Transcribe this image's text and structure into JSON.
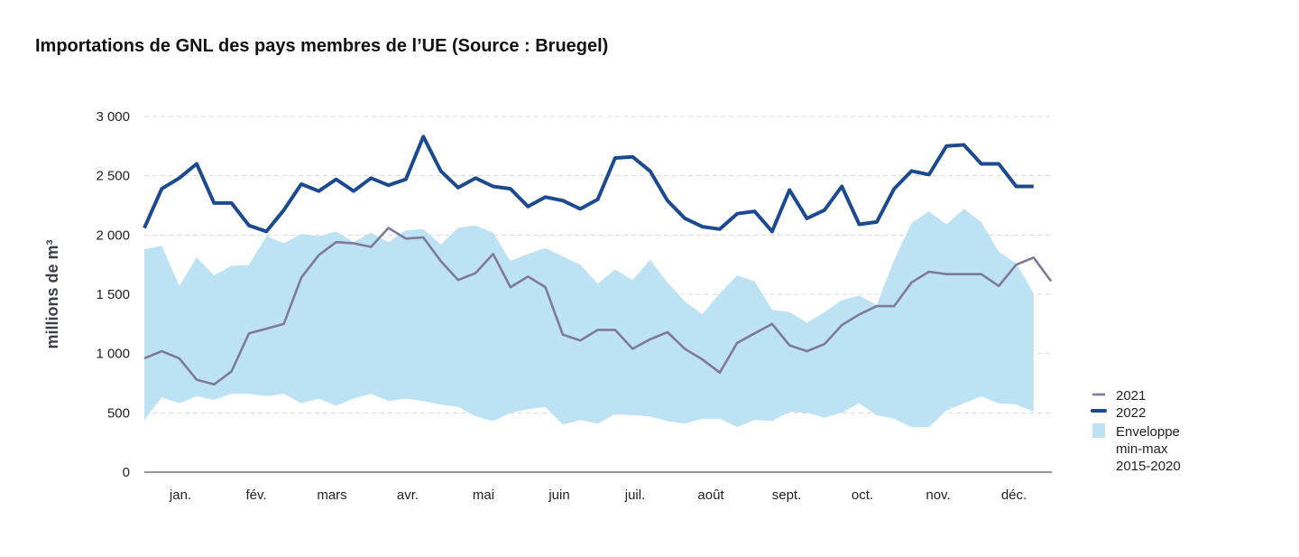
{
  "chart_data": {
    "type": "line",
    "title": "Importations de GNL des pays membres de l’UE (Source : Bruegel)",
    "xlabel": "",
    "ylabel": "millions de m³",
    "ylim": [
      0,
      3000
    ],
    "yticks": [
      0,
      500,
      1000,
      1500,
      2000,
      2500,
      3000
    ],
    "ytick_labels": [
      "0",
      "500",
      "1 000",
      "1 500",
      "2 000",
      "2 500",
      "3 000"
    ],
    "x_unit": "semaine",
    "month_labels": [
      "jan.",
      "fév.",
      "mars",
      "avr.",
      "mai",
      "juin",
      "juil.",
      "août",
      "sept.",
      "oct.",
      "nov.",
      "déc."
    ],
    "grid": true,
    "legend_position": "right",
    "colors": {
      "2021": "#7f7a96",
      "2022": "#1c4a8f",
      "envelope": "#bce2f4"
    },
    "series": [
      {
        "name": "2021",
        "values": [
          960,
          1020,
          960,
          780,
          740,
          850,
          1170,
          1210,
          1250,
          1640,
          1830,
          1940,
          1930,
          1900,
          2060,
          1970,
          1980,
          1780,
          1620,
          1680,
          1840,
          1560,
          1650,
          1560,
          1160,
          1110,
          1200,
          1200,
          1040,
          1120,
          1180,
          1040,
          950,
          840,
          1090,
          1170,
          1250,
          1070,
          1020,
          1080,
          1240,
          1330,
          1400,
          1400,
          1600,
          1690,
          1670,
          1670,
          1670,
          1570,
          1750,
          1810,
          1610
        ]
      },
      {
        "name": "2022",
        "values": [
          2060,
          2390,
          2480,
          2600,
          2270,
          2270,
          2080,
          2030,
          2210,
          2430,
          2370,
          2470,
          2370,
          2480,
          2420,
          2470,
          2830,
          2540,
          2400,
          2480,
          2410,
          2390,
          2240,
          2320,
          2290,
          2220,
          2300,
          2650,
          2660,
          2540,
          2290,
          2140,
          2070,
          2050,
          2180,
          2200,
          2030,
          2380,
          2140,
          2210,
          2410,
          2090,
          2110,
          2390,
          2540,
          2510,
          2750,
          2760,
          2600,
          2600,
          2410,
          2410
        ]
      }
    ],
    "envelope": {
      "name": "Enveloppe min-max 2015-2020",
      "legend_lines": [
        "Enveloppe",
        "min-max",
        "2015-2020"
      ],
      "max": [
        1880,
        1910,
        1570,
        1810,
        1660,
        1740,
        1750,
        1990,
        1930,
        2010,
        1990,
        2030,
        1940,
        2020,
        1940,
        2040,
        2050,
        1920,
        2060,
        2080,
        2020,
        1780,
        1840,
        1890,
        1820,
        1750,
        1590,
        1710,
        1620,
        1790,
        1600,
        1440,
        1330,
        1510,
        1660,
        1610,
        1370,
        1350,
        1260,
        1350,
        1450,
        1490,
        1410,
        1790,
        2100,
        2200,
        2090,
        2220,
        2110,
        1860,
        1760,
        1510
      ],
      "min": [
        440,
        630,
        580,
        640,
        610,
        660,
        660,
        640,
        660,
        580,
        620,
        560,
        620,
        660,
        600,
        620,
        600,
        570,
        550,
        470,
        430,
        500,
        530,
        550,
        400,
        440,
        410,
        490,
        480,
        470,
        430,
        410,
        450,
        450,
        380,
        440,
        430,
        510,
        500,
        460,
        500,
        580,
        480,
        450,
        380,
        380,
        520,
        580,
        640,
        580,
        570,
        510
      ]
    }
  }
}
